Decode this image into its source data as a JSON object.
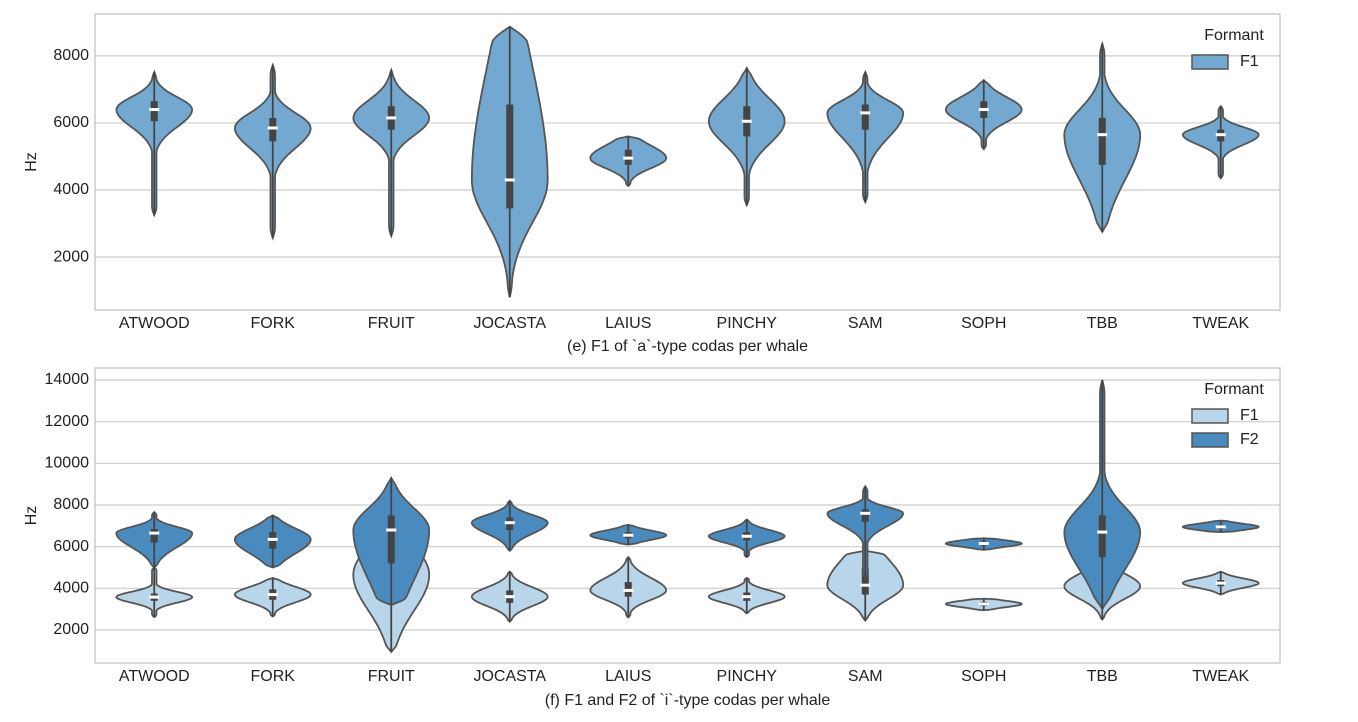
{
  "chart_data": [
    {
      "type": "violin",
      "xlabel": "(e) F1 of `a`-type codas per whale",
      "ylabel": "Hz",
      "categories": [
        "ATWOOD",
        "FORK",
        "FRUIT",
        "JOCASTA",
        "LAIUS",
        "PINCHY",
        "SAM",
        "SOPH",
        "TBB",
        "TWEAK"
      ],
      "ylim": [
        420,
        9250
      ],
      "yticks": [
        2000,
        4000,
        6000,
        8000
      ],
      "grid": true,
      "legend": {
        "title": "Formant",
        "position": "upper right"
      },
      "series": [
        {
          "name": "F1",
          "color": "#73a9d0",
          "values": [
            6400,
            5850,
            6150,
            4300,
            4950,
            6050,
            6300,
            6400,
            5650,
            5650
          ],
          "q1": [
            6050,
            5450,
            5800,
            3450,
            4750,
            5600,
            5800,
            6150,
            4750,
            5450
          ],
          "q3": [
            6650,
            6150,
            6500,
            6550,
            5200,
            6500,
            6550,
            6650,
            6150,
            5800
          ],
          "min": [
            3250,
            2570,
            2630,
            800,
            4120,
            3550,
            3640,
            5220,
            2750,
            4350
          ],
          "max": [
            7520,
            7730,
            7580,
            8870,
            5600,
            7640,
            7520,
            7280,
            8360,
            6500
          ]
        }
      ]
    },
    {
      "type": "violin",
      "xlabel": "(f) F1 and F2 of `i`-type codas per whale",
      "ylabel": "Hz",
      "categories": [
        "ATWOOD",
        "FORK",
        "FRUIT",
        "JOCASTA",
        "LAIUS",
        "PINCHY",
        "SAM",
        "SOPH",
        "TBB",
        "TWEAK"
      ],
      "ylim": [
        416,
        14576
      ],
      "yticks": [
        2000,
        4000,
        6000,
        8000,
        10000,
        12000,
        14000
      ],
      "grid": true,
      "legend": {
        "title": "Formant",
        "position": "upper right"
      },
      "series": [
        {
          "name": "F1",
          "color": "#b9d5ea",
          "values": [
            3580,
            3700,
            4650,
            3600,
            3900,
            3600,
            4150,
            3250,
            4100,
            4250
          ],
          "q1": [
            3400,
            3450,
            3500,
            3300,
            3600,
            3400,
            3700,
            3150,
            3700,
            4100
          ],
          "q3": [
            3750,
            3950,
            5600,
            3900,
            4300,
            3800,
            5000,
            3350,
            4500,
            4400
          ],
          "min": [
            2620,
            2650,
            950,
            2400,
            2600,
            2800,
            2450,
            2950,
            2500,
            3700
          ],
          "max": [
            5000,
            4500,
            7000,
            4800,
            5500,
            4500,
            5800,
            3500,
            6000,
            4800
          ]
        },
        {
          "name": "F2",
          "color": "#4a8bbf",
          "values": [
            6650,
            6350,
            6800,
            7150,
            6550,
            6500,
            7600,
            6150,
            6700,
            6950
          ],
          "q1": [
            6200,
            5900,
            5200,
            6800,
            6400,
            6300,
            7200,
            6050,
            5500,
            6850
          ],
          "q3": [
            6850,
            6700,
            7500,
            7400,
            6700,
            6700,
            7800,
            6250,
            7500,
            7050
          ],
          "min": [
            5000,
            5000,
            3200,
            5800,
            6100,
            5500,
            4500,
            5850,
            3000,
            6700
          ],
          "max": [
            7660,
            7500,
            9300,
            8200,
            7050,
            7300,
            8900,
            6400,
            14000,
            7250
          ]
        }
      ]
    }
  ]
}
